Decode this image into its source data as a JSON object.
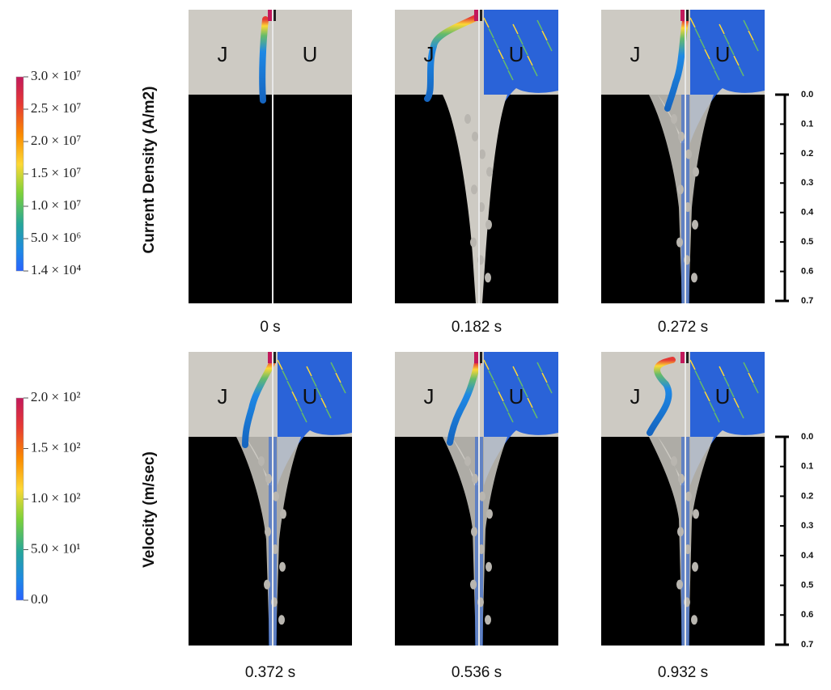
{
  "colorbars": [
    {
      "title": "Current Density (A/m2)",
      "labels": [
        "3.0 × 10⁷",
        "2.5 × 10⁷",
        "2.0 × 10⁷",
        "1.5 × 10⁷",
        "1.0 × 10⁷",
        "5.0 × 10⁶",
        "1.4 × 10⁴"
      ]
    },
    {
      "title": "Velocity (m/sec)",
      "labels": [
        "2.0 × 10²",
        "1.5 × 10²",
        "1.0 × 10²",
        "5.0 × 10¹",
        "0.0"
      ]
    }
  ],
  "panels": [
    {
      "time": "0 s",
      "left_label": "J",
      "right_label": "U"
    },
    {
      "time": "0.182 s",
      "left_label": "J",
      "right_label": "U"
    },
    {
      "time": "0.272 s",
      "left_label": "J",
      "right_label": "U"
    },
    {
      "time": "0.372 s",
      "left_label": "J",
      "right_label": "U"
    },
    {
      "time": "0.536 s",
      "left_label": "J",
      "right_label": "U"
    },
    {
      "time": "0.932 s",
      "left_label": "J",
      "right_label": "U"
    }
  ],
  "scale_bars": [
    {
      "ticks": [
        "0.0",
        "0.1",
        "0.2",
        "0.3",
        "0.4",
        "0.5",
        "0.6",
        "0.7"
      ]
    },
    {
      "ticks": [
        "0.0",
        "0.1",
        "0.2",
        "0.3",
        "0.4",
        "0.5",
        "0.6",
        "0.7"
      ]
    }
  ]
}
